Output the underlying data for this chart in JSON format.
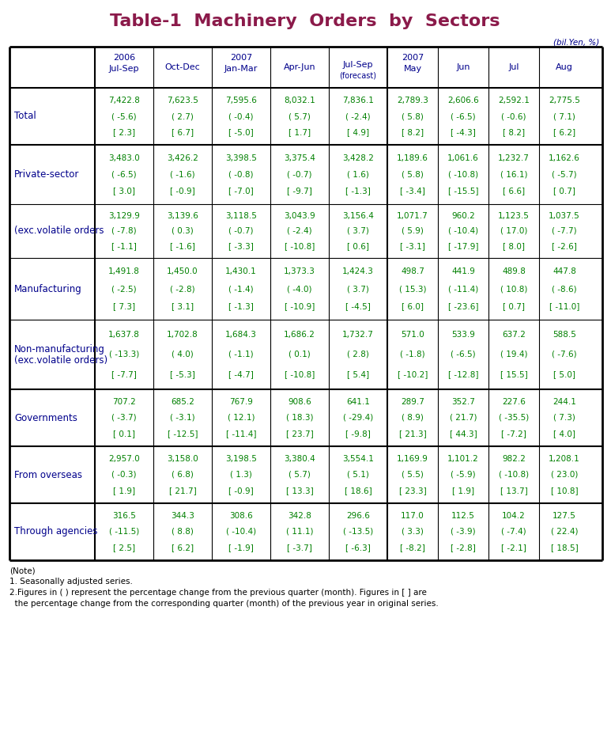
{
  "title": "Table-1  Machinery  Orders  by  Sectors",
  "title_color": "#8B1A4A",
  "unit_label": "(bil.Yen, %)",
  "background_color": "#FFFFFF",
  "header_text_color": "#00008B",
  "data_text_color": "#008000",
  "row_label_color": "#00008B",
  "col_headers": [
    {
      "line1": "2006",
      "line2": "Jul-Sep",
      "line3": ""
    },
    {
      "line1": "",
      "line2": "Oct-Dec",
      "line3": ""
    },
    {
      "line1": "2007",
      "line2": "Jan-Mar",
      "line3": ""
    },
    {
      "line1": "",
      "line2": "Apr-Jun",
      "line3": ""
    },
    {
      "line1": "",
      "line2": "Jul-Sep",
      "line3": "(forecast)"
    },
    {
      "line1": "2007",
      "line2": "May",
      "line3": ""
    },
    {
      "line1": "",
      "line2": "Jun",
      "line3": ""
    },
    {
      "line1": "",
      "line2": "Jul",
      "line3": ""
    },
    {
      "line1": "",
      "line2": "Aug",
      "line3": ""
    }
  ],
  "rows": [
    {
      "label": "Total",
      "label_lines": [
        "Total"
      ],
      "data": [
        [
          "7,422.8",
          "( -5.6)",
          "[ 2.3]"
        ],
        [
          "7,623.5",
          "( 2.7)",
          "[ 6.7]"
        ],
        [
          "7,595.6",
          "( -0.4)",
          "[ -5.0]"
        ],
        [
          "8,032.1",
          "( 5.7)",
          "[ 1.7]"
        ],
        [
          "7,836.1",
          "( -2.4)",
          "[ 4.9]"
        ],
        [
          "2,789.3",
          "( 5.8)",
          "[ 8.2]"
        ],
        [
          "2,606.6",
          "( -6.5)",
          "[ -4.3]"
        ],
        [
          "2,592.1",
          "( -0.6)",
          "[ 8.2]"
        ],
        [
          "2,775.5",
          "( 7.1)",
          "[ 6.2]"
        ]
      ]
    },
    {
      "label": "Private-sector",
      "label_lines": [
        "Private-sector"
      ],
      "data": [
        [
          "3,483.0",
          "( -6.5)",
          "[ 3.0]"
        ],
        [
          "3,426.2",
          "( -1.6)",
          "[ -0.9]"
        ],
        [
          "3,398.5",
          "( -0.8)",
          "[ -7.0]"
        ],
        [
          "3,375.4",
          "( -0.7)",
          "[ -9.7]"
        ],
        [
          "3,428.2",
          "( 1.6)",
          "[ -1.3]"
        ],
        [
          "1,189.6",
          "( 5.8)",
          "[ -3.4]"
        ],
        [
          "1,061.6",
          "( -10.8)",
          "[ -15.5]"
        ],
        [
          "1,232.7",
          "( 16.1)",
          "[ 6.6]"
        ],
        [
          "1,162.6",
          "( -5.7)",
          "[ 0.7]"
        ]
      ]
    },
    {
      "label": "(exc.volatile orders",
      "label_lines": [
        "(exc.volatile orders"
      ],
      "data": [
        [
          "3,129.9",
          "( -7.8)",
          "[ -1.1]"
        ],
        [
          "3,139.6",
          "( 0.3)",
          "[ -1.6]"
        ],
        [
          "3,118.5",
          "( -0.7)",
          "[ -3.3]"
        ],
        [
          "3,043.9",
          "( -2.4)",
          "[ -10.8]"
        ],
        [
          "3,156.4",
          "( 3.7)",
          "[ 0.6]"
        ],
        [
          "1,071.7",
          "( 5.9)",
          "[ -3.1]"
        ],
        [
          "960.2",
          "( -10.4)",
          "[ -17.9]"
        ],
        [
          "1,123.5",
          "( 17.0)",
          "[ 8.0]"
        ],
        [
          "1,037.5",
          "( -7.7)",
          "[ -2.6]"
        ]
      ]
    },
    {
      "label": "Manufacturing",
      "label_lines": [
        "Manufacturing"
      ],
      "data": [
        [
          "1,491.8",
          "( -2.5)",
          "[ 7.3]"
        ],
        [
          "1,450.0",
          "( -2.8)",
          "[ 3.1]"
        ],
        [
          "1,430.1",
          "( -1.4)",
          "[ -1.3]"
        ],
        [
          "1,373.3",
          "( -4.0)",
          "[ -10.9]"
        ],
        [
          "1,424.3",
          "( 3.7)",
          "[ -4.5]"
        ],
        [
          "498.7",
          "( 15.3)",
          "[ 6.0]"
        ],
        [
          "441.9",
          "( -11.4)",
          "[ -23.6]"
        ],
        [
          "489.8",
          "( 10.8)",
          "[ 0.7]"
        ],
        [
          "447.8",
          "( -8.6)",
          "[ -11.0]"
        ]
      ]
    },
    {
      "label": "Non-manufacturing\n(exc.volatile orders)",
      "label_lines": [
        "Non-manufacturing",
        "(exc.volatile orders)"
      ],
      "data": [
        [
          "1,637.8",
          "( -13.3)",
          "[ -7.7]"
        ],
        [
          "1,702.8",
          "( 4.0)",
          "[ -5.3]"
        ],
        [
          "1,684.3",
          "( -1.1)",
          "[ -4.7]"
        ],
        [
          "1,686.2",
          "( 0.1)",
          "[ -10.8]"
        ],
        [
          "1,732.7",
          "( 2.8)",
          "[ 5.4]"
        ],
        [
          "571.0",
          "( -1.8)",
          "[ -10.2]"
        ],
        [
          "533.9",
          "( -6.5)",
          "[ -12.8]"
        ],
        [
          "637.2",
          "( 19.4)",
          "[ 15.5]"
        ],
        [
          "588.5",
          "( -7.6)",
          "[ 5.0]"
        ]
      ]
    },
    {
      "label": "Governments",
      "label_lines": [
        "Governments"
      ],
      "data": [
        [
          "707.2",
          "( -3.7)",
          "[ 0.1]"
        ],
        [
          "685.2",
          "( -3.1)",
          "[ -12.5]"
        ],
        [
          "767.9",
          "( 12.1)",
          "[ -11.4]"
        ],
        [
          "908.6",
          "( 18.3)",
          "[ 23.7]"
        ],
        [
          "641.1",
          "( -29.4)",
          "[ -9.8]"
        ],
        [
          "289.7",
          "( 8.9)",
          "[ 21.3]"
        ],
        [
          "352.7",
          "( 21.7)",
          "[ 44.3]"
        ],
        [
          "227.6",
          "( -35.5)",
          "[ -7.2]"
        ],
        [
          "244.1",
          "( 7.3)",
          "[ 4.0]"
        ]
      ]
    },
    {
      "label": "From overseas",
      "label_lines": [
        "From overseas"
      ],
      "data": [
        [
          "2,957.0",
          "( -0.3)",
          "[ 1.9]"
        ],
        [
          "3,158.0",
          "( 6.8)",
          "[ 21.7]"
        ],
        [
          "3,198.5",
          "( 1.3)",
          "[ -0.9]"
        ],
        [
          "3,380.4",
          "( 5.7)",
          "[ 13.3]"
        ],
        [
          "3,554.1",
          "( 5.1)",
          "[ 18.6]"
        ],
        [
          "1,169.9",
          "( 5.5)",
          "[ 23.3]"
        ],
        [
          "1,101.2",
          "( -5.9)",
          "[ 1.9]"
        ],
        [
          "982.2",
          "( -10.8)",
          "[ 13.7]"
        ],
        [
          "1,208.1",
          "( 23.0)",
          "[ 10.8]"
        ]
      ]
    },
    {
      "label": "Through agencies",
      "label_lines": [
        "Through agencies"
      ],
      "data": [
        [
          "316.5",
          "( -11.5)",
          "[ 2.5]"
        ],
        [
          "344.3",
          "( 8.8)",
          "[ 6.2]"
        ],
        [
          "308.6",
          "( -10.4)",
          "[ -1.9]"
        ],
        [
          "342.8",
          "( 11.1)",
          "[ -3.7]"
        ],
        [
          "296.6",
          "( -13.5)",
          "[ -6.3]"
        ],
        [
          "117.0",
          "( 3.3)",
          "[ -8.2]"
        ],
        [
          "112.5",
          "( -3.9)",
          "[ -2.8]"
        ],
        [
          "104.2",
          "( -7.4)",
          "[ -2.1]"
        ],
        [
          "127.5",
          "( 22.4)",
          "[ 18.5]"
        ]
      ]
    }
  ],
  "note_lines": [
    "(Note)",
    "1. Seasonally adjusted series.",
    "2.Figures in ( ) represent the percentage change from the previous quarter (month). Figures in [ ] are",
    "  the percentage change from the corresponding quarter (month) of the previous year in original series."
  ],
  "thick_section_after": [
    0,
    4,
    5,
    6,
    7
  ],
  "inner_section_after": [
    1,
    2,
    3
  ]
}
